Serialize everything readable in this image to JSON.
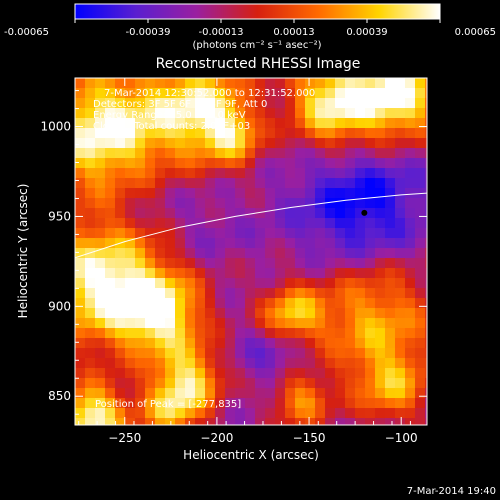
{
  "chart_data": {
    "type": "heatmap",
    "title": "Reconstructed RHESSI Image",
    "xlabel": "Heliocentric X (arcsec)",
    "ylabel": "Heliocentric Y (arcsec)",
    "xlim": [
      -277,
      -86
    ],
    "ylim": [
      834,
      1027
    ],
    "x_ticks": [
      -250,
      -200,
      -150,
      -100
    ],
    "y_ticks": [
      850,
      900,
      950,
      1000
    ],
    "colorbar": {
      "min": -0.00065,
      "max": 0.00065,
      "tick_values": [
        -0.00065,
        -0.00039,
        -0.00013,
        0.00013,
        0.00039,
        0.00065
      ],
      "tick_labels": [
        "-0.00065",
        "-0.00039",
        "-0.00013",
        "0.00013",
        "0.00039",
        "0.00065"
      ],
      "unit_label": "(photons cm⁻² s⁻¹ asec⁻²)",
      "colors": [
        "#0000ff",
        "#5a1fd0",
        "#9a1fa0",
        "#d62010",
        "#ff6a00",
        "#ffd400",
        "#ffffff"
      ]
    },
    "annotations": [
      "7-Mar-2014 12:30:52.000 to 12:31:52.000",
      "Detectors: 3F 5F 6F 7F 8F 9F, Att 0",
      "Energy Range: 25.0 - 50.0 keV",
      "Clean    Total counts: 2.01E+03"
    ],
    "peak_label": "Position of Peak = [-277,835]",
    "peak_marker": {
      "x": -120,
      "y": 952
    },
    "limb_curve": [
      [
        -277,
        927
      ],
      [
        -250,
        936
      ],
      [
        -220,
        944
      ],
      [
        -190,
        950
      ],
      [
        -160,
        955
      ],
      [
        -130,
        959
      ],
      [
        -100,
        962
      ],
      [
        -86,
        963
      ]
    ],
    "hot_spots": [
      {
        "x": -262,
        "y": 997,
        "value": 0.00065,
        "r": 24
      },
      {
        "x": -210,
        "y": 1011,
        "value": 0.00052,
        "r": 20
      },
      {
        "x": -137,
        "y": 1013,
        "value": 0.0006,
        "r": 18
      },
      {
        "x": -100,
        "y": 1017,
        "value": 0.0006,
        "r": 17
      },
      {
        "x": -262,
        "y": 913,
        "value": 0.00065,
        "r": 24
      },
      {
        "x": -230,
        "y": 896,
        "value": 0.0005,
        "r": 16
      },
      {
        "x": -215,
        "y": 860,
        "value": 0.0004,
        "r": 13
      },
      {
        "x": -225,
        "y": 842,
        "value": 0.00032,
        "r": 12
      },
      {
        "x": -160,
        "y": 894,
        "value": 0.00045,
        "r": 12
      },
      {
        "x": -115,
        "y": 893,
        "value": 0.00035,
        "r": 24
      },
      {
        "x": -105,
        "y": 855,
        "value": 0.00025,
        "r": 14
      },
      {
        "x": -268,
        "y": 838,
        "value": 0.00065,
        "r": 13
      },
      {
        "x": -155,
        "y": 848,
        "value": 0.0003,
        "r": 11
      },
      {
        "x": -190,
        "y": 995,
        "value": 0.00028,
        "r": 12
      }
    ],
    "cold_spots": [
      {
        "x": -122,
        "y": 956,
        "value": -0.00065,
        "r": 24
      },
      {
        "x": -165,
        "y": 876,
        "value": -0.0005,
        "r": 14
      },
      {
        "x": -210,
        "y": 943,
        "value": -0.0003,
        "r": 16
      },
      {
        "x": -175,
        "y": 1003,
        "value": -0.00035,
        "r": 14
      },
      {
        "x": -245,
        "y": 963,
        "value": -0.0003,
        "r": 16
      },
      {
        "x": -190,
        "y": 920,
        "value": -0.0002,
        "r": 14
      }
    ],
    "background_value": -0.00021,
    "grid": false
  },
  "footer": {
    "timestamp": "7-Mar-2014 19:40"
  }
}
